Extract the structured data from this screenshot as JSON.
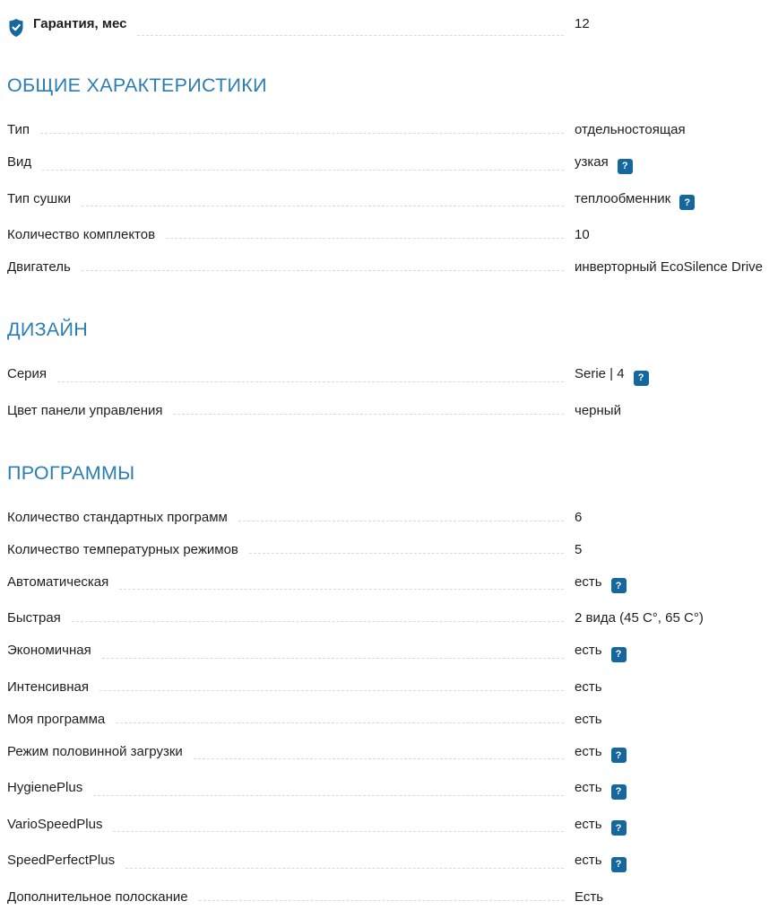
{
  "colors": {
    "accent_blue": "#2b7db2",
    "icon_blue": "#16679d",
    "text": "#1e1e1e",
    "leader_gray": "#d9d9d9"
  },
  "help_glyph": "?",
  "warranty": {
    "label": "Гарантия, мес",
    "value": "12"
  },
  "sections": [
    {
      "title": "ОБЩИЕ ХАРАКТЕРИСТИКИ",
      "rows": [
        {
          "label": "Тип",
          "value": "отдельностоящая",
          "help": false
        },
        {
          "label": "Вид",
          "value": "узкая",
          "help": true
        },
        {
          "label": "Тип сушки",
          "value": "теплообменник",
          "help": true
        },
        {
          "label": "Количество комплектов",
          "value": "10",
          "help": false
        },
        {
          "label": "Двигатель",
          "value": "инверторный EcoSilence Drive",
          "help": false
        }
      ]
    },
    {
      "title": "ДИЗАЙН",
      "rows": [
        {
          "label": "Серия",
          "value": "Serie | 4",
          "help": true
        },
        {
          "label": "Цвет панели управления",
          "value": "черный",
          "help": false
        }
      ]
    },
    {
      "title": "ПРОГРАММЫ",
      "rows": [
        {
          "label": "Количество стандартных программ",
          "value": "6",
          "help": false
        },
        {
          "label": "Количество температурных режимов",
          "value": "5",
          "help": false
        },
        {
          "label": "Автоматическая",
          "value": "есть",
          "help": true
        },
        {
          "label": "Быстрая",
          "value": "2 вида (45 C°, 65 C°)",
          "help": false
        },
        {
          "label": "Экономичная",
          "value": "есть",
          "help": true
        },
        {
          "label": "Интенсивная",
          "value": "есть",
          "help": false
        },
        {
          "label": "Моя программа",
          "value": "есть",
          "help": false
        },
        {
          "label": "Режим половинной загрузки",
          "value": "есть",
          "help": true
        },
        {
          "label": "HygienePlus",
          "value": "есть",
          "help": true
        },
        {
          "label": "VarioSpeedPlus",
          "value": "есть",
          "help": true
        },
        {
          "label": "SpeedPerfectPlus",
          "value": "есть",
          "help": true
        },
        {
          "label": "Дополнительное полоскание",
          "value": "Есть",
          "help": false
        }
      ]
    }
  ]
}
